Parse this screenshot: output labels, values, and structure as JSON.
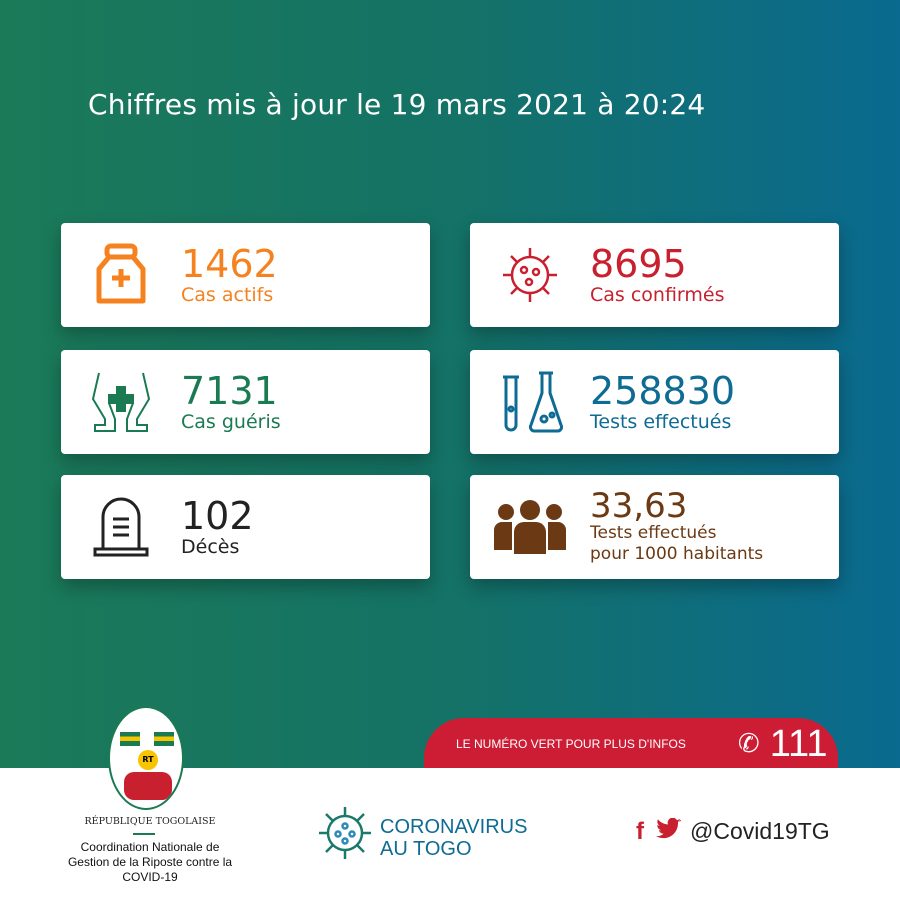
{
  "header": {
    "title": "Chiffres mis à jour le 19 mars 2021 à 20:24"
  },
  "cards": [
    {
      "value": "1462",
      "label": "Cas actifs",
      "color": "#f5821f",
      "icon": "medicine-bottle-icon"
    },
    {
      "value": "8695",
      "label": "Cas confirmés",
      "color": "#c8202f",
      "icon": "virus-icon"
    },
    {
      "value": "7131",
      "label": "Cas guéris",
      "color": "#1a7a52",
      "icon": "hands-cross-icon"
    },
    {
      "value": "258830",
      "label": "Tests effectués",
      "color": "#0e6b94",
      "icon": "test-tubes-icon"
    },
    {
      "value": "102",
      "label": "Décès",
      "color": "#222222",
      "icon": "tombstone-icon"
    },
    {
      "value": "33,63",
      "label": "Tests effectués",
      "label2": "pour 1000 habitants",
      "color": "#6b3a14",
      "icon": "people-icon"
    }
  ],
  "hotline": {
    "text": "LE NUMÉRO VERT POUR PLUS D'INFOS",
    "number": "111"
  },
  "footer": {
    "republic": "RÉPUBLIQUE TOGOLAISE",
    "coat_text": "RT",
    "org1": "Coordination Nationale de",
    "org2": "Gestion de la Riposte contre la",
    "org3": "COVID-19",
    "logo1": "CORONAVIRUS",
    "logo2": "AU TOGO",
    "handle": "@Covid19TG"
  }
}
